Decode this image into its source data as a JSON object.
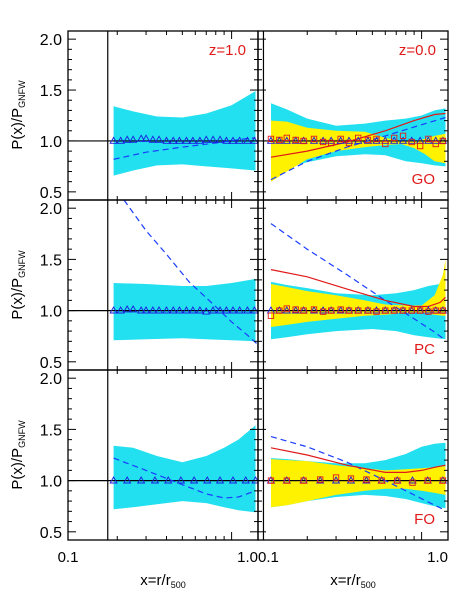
{
  "figure": {
    "ylabel_main": "P(x)/P",
    "ylabel_sub": "GNFW",
    "xlabel_main": "x=r/r",
    "xlabel_sub": "500",
    "colors": {
      "cyan_band": "#22e0f0",
      "yellow_band": "#fff200",
      "triangles": "#1a1adc",
      "squares": "#e01a1a",
      "dashed": "#1a3cff",
      "red_line": "#e01a1a",
      "label_red": "#e01a1a",
      "frame": "#000000"
    }
  },
  "chart_data": [
    {
      "type": "line",
      "panel": "left-top",
      "row": 0,
      "col": 0,
      "xscale": "log",
      "xlim": [
        0.1,
        1.45
      ],
      "ylim": [
        0.42,
        2.08
      ],
      "yticks": [
        "0.5",
        "1.0",
        "1.5",
        "2.0"
      ],
      "xticks": [],
      "vline_x": 0.175,
      "hline_y": 1.0,
      "annotations": [
        "z=1.0"
      ],
      "cyan_band": {
        "x": [
          0.19,
          0.25,
          0.35,
          0.5,
          0.7,
          1.0,
          1.4
        ],
        "lo": [
          0.66,
          0.71,
          0.76,
          0.77,
          0.75,
          0.73,
          0.71
        ],
        "hi": [
          1.34,
          1.29,
          1.24,
          1.23,
          1.27,
          1.35,
          1.49
        ]
      },
      "triangles": {
        "x": [
          0.19,
          0.21,
          0.23,
          0.25,
          0.28,
          0.3,
          0.33,
          0.36,
          0.4,
          0.44,
          0.48,
          0.53,
          0.58,
          0.64,
          0.7,
          0.77,
          0.85,
          0.93,
          1.02,
          1.12,
          1.25,
          1.38
        ],
        "y": [
          1.0,
          1.0,
          1.01,
          1.01,
          1.02,
          1.02,
          1.01,
          1.01,
          1.0,
          1.0,
          1.0,
          1.0,
          1.0,
          1.0,
          1.01,
          1.01,
          1.01,
          1.0,
          1.0,
          1.0,
          1.0,
          1.0
        ]
      },
      "dashed": {
        "x": [
          0.19,
          0.3,
          0.5,
          0.8,
          1.2,
          1.4
        ],
        "y": [
          0.82,
          0.89,
          0.94,
          0.98,
          1.02,
          1.03
        ]
      }
    },
    {
      "type": "line",
      "panel": "right-top",
      "row": 0,
      "col": 1,
      "xscale": "log",
      "xlim": [
        0.1,
        1.45
      ],
      "ylim": [
        0.42,
        2.08
      ],
      "yticks": [],
      "xticks": [],
      "vline_x": 0.108,
      "hline_y": 1.0,
      "annotations": [
        "z=0.0",
        "GO"
      ],
      "cyan_band": {
        "x": [
          0.12,
          0.15,
          0.2,
          0.3,
          0.45,
          0.6,
          0.8,
          1.0,
          1.2,
          1.4
        ],
        "lo": [
          0.72,
          0.74,
          0.79,
          0.85,
          0.87,
          0.86,
          0.8,
          0.78,
          0.76,
          0.75
        ],
        "hi": [
          1.37,
          1.31,
          1.22,
          1.15,
          1.17,
          1.2,
          1.22,
          1.25,
          1.3,
          1.32
        ]
      },
      "yellow_band": {
        "x": [
          0.12,
          0.15,
          0.2,
          0.3,
          0.45,
          0.6,
          0.75,
          0.9,
          1.05,
          1.2,
          1.4
        ],
        "lo": [
          0.6,
          0.7,
          0.82,
          0.9,
          0.94,
          0.96,
          0.97,
          0.93,
          0.87,
          0.8,
          0.78
        ],
        "hi": [
          1.2,
          1.19,
          1.13,
          1.1,
          1.09,
          1.03,
          1.0,
          1.0,
          1.02,
          1.05,
          1.07
        ]
      },
      "triangles": {
        "x": [
          0.12,
          0.135,
          0.15,
          0.17,
          0.19,
          0.22,
          0.25,
          0.28,
          0.32,
          0.36,
          0.41,
          0.47,
          0.53,
          0.6,
          0.68,
          0.77,
          0.87,
          0.98,
          1.1,
          1.22,
          1.35
        ],
        "y": [
          1.0,
          1.0,
          1.0,
          1.0,
          1.0,
          1.0,
          1.0,
          1.0,
          1.0,
          1.0,
          1.0,
          1.0,
          1.0,
          1.0,
          1.0,
          1.0,
          1.0,
          1.0,
          1.0,
          1.0,
          1.0
        ]
      },
      "squares": {
        "x": [
          0.12,
          0.135,
          0.15,
          0.17,
          0.19,
          0.22,
          0.25,
          0.28,
          0.32,
          0.36,
          0.41,
          0.47,
          0.53,
          0.6,
          0.68,
          0.77,
          0.87,
          0.98,
          1.1,
          1.22,
          1.35
        ],
        "y": [
          1.02,
          1.01,
          1.03,
          1.01,
          1.0,
          1.02,
          0.99,
          0.98,
          1.02,
          0.98,
          1.03,
          1.01,
          1.02,
          0.97,
          1.03,
          1.05,
          0.99,
          0.95,
          1.02,
          0.97,
          1.0
        ]
      },
      "dashed": {
        "x": [
          0.12,
          0.2,
          0.35,
          0.6,
          1.0,
          1.4
        ],
        "y": [
          0.62,
          0.8,
          0.94,
          1.05,
          1.16,
          1.23
        ]
      },
      "red_line": {
        "x": [
          0.12,
          0.2,
          0.35,
          0.6,
          0.9,
          1.2,
          1.4
        ],
        "y": [
          0.84,
          0.9,
          0.99,
          1.1,
          1.2,
          1.26,
          1.27
        ]
      }
    },
    {
      "type": "line",
      "panel": "left-middle",
      "row": 1,
      "col": 0,
      "xscale": "log",
      "xlim": [
        0.1,
        1.45
      ],
      "ylim": [
        0.42,
        2.08
      ],
      "yticks": [
        "0.5",
        "1.0",
        "1.5",
        "2.0"
      ],
      "xticks": [],
      "vline_x": 0.175,
      "hline_y": 1.0,
      "annotations": [],
      "cyan_band": {
        "x": [
          0.19,
          0.3,
          0.5,
          0.7,
          1.0,
          1.4
        ],
        "lo": [
          0.71,
          0.72,
          0.73,
          0.72,
          0.71,
          0.7
        ],
        "hi": [
          1.27,
          1.26,
          1.24,
          1.24,
          1.27,
          1.31
        ]
      },
      "triangles": {
        "x": [
          0.19,
          0.21,
          0.23,
          0.25,
          0.28,
          0.3,
          0.33,
          0.36,
          0.4,
          0.44,
          0.48,
          0.53,
          0.58,
          0.64,
          0.7,
          0.77,
          0.85,
          0.93,
          1.02,
          1.12,
          1.25,
          1.38
        ],
        "y": [
          1.0,
          1.0,
          1.01,
          1.01,
          1.0,
          1.0,
          1.0,
          1.0,
          1.0,
          1.0,
          1.0,
          1.0,
          1.0,
          1.0,
          0.99,
          1.0,
          1.0,
          1.0,
          1.0,
          1.0,
          1.0,
          1.0
        ]
      },
      "dashed": {
        "x": [
          0.22,
          0.3,
          0.4,
          0.55,
          0.75,
          1.0,
          1.25,
          1.42
        ],
        "y": [
          2.08,
          1.78,
          1.55,
          1.28,
          1.08,
          0.89,
          0.76,
          0.68
        ]
      }
    },
    {
      "type": "line",
      "panel": "right-middle",
      "row": 1,
      "col": 1,
      "xscale": "log",
      "xlim": [
        0.1,
        1.45
      ],
      "ylim": [
        0.42,
        2.08
      ],
      "yticks": [],
      "xticks": [],
      "vline_x": 0.108,
      "hline_y": 1.0,
      "annotations": [
        "PC"
      ],
      "cyan_band": {
        "x": [
          0.12,
          0.15,
          0.2,
          0.3,
          0.5,
          0.7,
          0.9,
          1.1,
          1.4
        ],
        "lo": [
          0.72,
          0.74,
          0.77,
          0.8,
          0.82,
          0.8,
          0.76,
          0.74,
          0.72
        ],
        "hi": [
          1.28,
          1.25,
          1.22,
          1.17,
          1.15,
          1.17,
          1.2,
          1.24,
          1.27
        ]
      },
      "yellow_band": {
        "x": [
          0.12,
          0.15,
          0.2,
          0.3,
          0.45,
          0.6,
          0.8,
          1.0,
          1.2,
          1.35,
          1.4
        ],
        "lo": [
          0.84,
          0.86,
          0.89,
          0.92,
          0.95,
          0.96,
          0.98,
          0.98,
          0.96,
          0.95,
          0.95
        ],
        "hi": [
          1.26,
          1.23,
          1.19,
          1.15,
          1.1,
          1.06,
          1.05,
          1.05,
          1.15,
          1.35,
          1.5
        ]
      },
      "triangles": {
        "x": [
          0.12,
          0.135,
          0.15,
          0.17,
          0.19,
          0.22,
          0.25,
          0.28,
          0.32,
          0.36,
          0.41,
          0.47,
          0.53,
          0.6,
          0.68,
          0.77,
          0.87,
          0.98,
          1.1,
          1.22,
          1.35
        ],
        "y": [
          1.0,
          1.0,
          1.0,
          1.0,
          1.0,
          1.0,
          1.0,
          1.0,
          1.0,
          1.0,
          1.0,
          1.0,
          1.0,
          1.0,
          1.0,
          1.0,
          1.0,
          1.0,
          1.0,
          1.0,
          1.0
        ]
      },
      "squares": {
        "x": [
          0.12,
          0.135,
          0.15,
          0.17,
          0.19,
          0.22,
          0.25,
          0.28,
          0.32,
          0.36,
          0.41,
          0.47,
          0.53,
          0.6,
          0.68,
          0.77,
          0.87,
          0.98,
          1.1,
          1.22,
          1.35
        ],
        "y": [
          0.95,
          1.0,
          1.02,
          1.01,
          1.0,
          1.01,
          0.99,
          1.0,
          1.01,
          1.0,
          1.0,
          1.0,
          0.99,
          1.0,
          1.0,
          1.0,
          1.0,
          1.0,
          0.99,
          1.0,
          1.0
        ]
      },
      "dashed": {
        "x": [
          0.12,
          0.2,
          0.35,
          0.6,
          0.9,
          1.2,
          1.4
        ],
        "y": [
          1.85,
          1.6,
          1.35,
          1.1,
          0.92,
          0.79,
          0.71
        ]
      },
      "red_line": {
        "x": [
          0.12,
          0.2,
          0.35,
          0.6,
          0.9,
          1.1,
          1.3,
          1.4
        ],
        "y": [
          1.4,
          1.33,
          1.21,
          1.1,
          1.04,
          1.04,
          1.08,
          1.13
        ]
      }
    },
    {
      "type": "line",
      "panel": "left-bottom",
      "row": 2,
      "col": 0,
      "xscale": "log",
      "xlim": [
        0.1,
        1.45
      ],
      "ylim": [
        0.42,
        2.08
      ],
      "yticks": [
        "0.5",
        "1.0",
        "1.5",
        "2.0"
      ],
      "xticks": [
        "0.1",
        "1.0"
      ],
      "vline_x": 0.175,
      "hline_y": 1.0,
      "annotations": [],
      "cyan_band": {
        "x": [
          0.19,
          0.25,
          0.35,
          0.5,
          0.7,
          0.9,
          1.1,
          1.4
        ],
        "lo": [
          0.72,
          0.74,
          0.77,
          0.8,
          0.78,
          0.74,
          0.71,
          0.69
        ],
        "hi": [
          1.34,
          1.32,
          1.24,
          1.18,
          1.24,
          1.32,
          1.4,
          1.54
        ]
      },
      "triangles": {
        "x": [
          0.19,
          0.23,
          0.28,
          0.34,
          0.41,
          0.49,
          0.59,
          0.71,
          0.85,
          1.02,
          1.22,
          1.4
        ],
        "y": [
          1.0,
          1.0,
          1.0,
          1.0,
          1.0,
          1.0,
          1.0,
          1.0,
          1.0,
          1.0,
          1.0,
          1.0
        ]
      },
      "dashed": {
        "x": [
          0.19,
          0.3,
          0.5,
          0.7,
          0.9,
          1.1,
          1.4
        ],
        "y": [
          1.22,
          1.1,
          0.96,
          0.87,
          0.83,
          0.84,
          0.9
        ]
      }
    },
    {
      "type": "line",
      "panel": "right-bottom",
      "row": 2,
      "col": 1,
      "xscale": "log",
      "xlim": [
        0.1,
        1.45
      ],
      "ylim": [
        0.42,
        2.08
      ],
      "yticks": [],
      "xticks": [
        "0.1",
        "1.0"
      ],
      "vline_x": 0.108,
      "hline_y": 1.0,
      "annotations": [
        "FO"
      ],
      "cyan_band": {
        "x": [
          0.12,
          0.15,
          0.2,
          0.3,
          0.45,
          0.6,
          0.8,
          1.0,
          1.2,
          1.4
        ],
        "lo": [
          0.74,
          0.76,
          0.8,
          0.84,
          0.86,
          0.85,
          0.82,
          0.78,
          0.75,
          0.73
        ],
        "hi": [
          1.22,
          1.21,
          1.19,
          1.17,
          1.17,
          1.2,
          1.26,
          1.33,
          1.36,
          1.37
        ]
      },
      "yellow_band": {
        "x": [
          0.12,
          0.15,
          0.2,
          0.3,
          0.45,
          0.6,
          0.8,
          1.0,
          1.2,
          1.4
        ],
        "lo": [
          0.74,
          0.76,
          0.8,
          0.86,
          0.9,
          0.92,
          0.92,
          0.9,
          0.88,
          0.86
        ],
        "hi": [
          1.21,
          1.2,
          1.19,
          1.15,
          1.12,
          1.1,
          1.11,
          1.12,
          1.13,
          1.14
        ]
      },
      "triangles": {
        "x": [
          0.12,
          0.15,
          0.19,
          0.24,
          0.3,
          0.37,
          0.46,
          0.57,
          0.71,
          0.88,
          1.09,
          1.35
        ],
        "y": [
          1.0,
          1.0,
          1.0,
          1.0,
          1.0,
          1.0,
          1.0,
          1.0,
          1.0,
          1.0,
          1.0,
          1.0
        ]
      },
      "squares": {
        "x": [
          0.12,
          0.15,
          0.19,
          0.24,
          0.3,
          0.37,
          0.46,
          0.57,
          0.71,
          0.88,
          1.09,
          1.35
        ],
        "y": [
          1.0,
          1.0,
          1.0,
          1.01,
          1.03,
          1.02,
          1.01,
          1.0,
          1.0,
          0.98,
          1.0,
          1.0
        ]
      },
      "dashed": {
        "x": [
          0.12,
          0.2,
          0.35,
          0.6,
          0.9,
          1.2,
          1.4
        ],
        "y": [
          1.43,
          1.33,
          1.18,
          1.0,
          0.86,
          0.76,
          0.71
        ]
      },
      "red_line": {
        "x": [
          0.12,
          0.2,
          0.35,
          0.6,
          0.8,
          1.0,
          1.2,
          1.4
        ],
        "y": [
          1.32,
          1.25,
          1.15,
          1.08,
          1.08,
          1.1,
          1.13,
          1.15
        ]
      }
    }
  ]
}
